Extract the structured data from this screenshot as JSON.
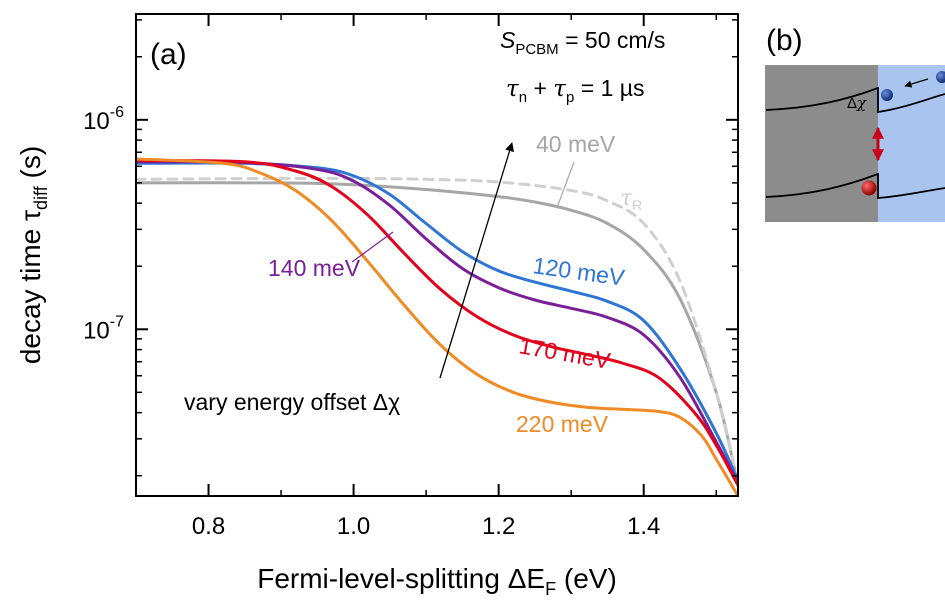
{
  "chart_data": {
    "type": "line",
    "panel_a_label": "(a)",
    "panel_b_label": "(b)",
    "xlabel": {
      "text": "Fermi-level-splitting ΔE",
      "sub": "F",
      "unit": " (eV)"
    },
    "ylabel": {
      "text": "decay time τ",
      "sub": "diff",
      "unit": " (s)"
    },
    "xlim": [
      0.7,
      1.53
    ],
    "ylim": [
      1.6e-08,
      3.2e-06
    ],
    "yscale": "log",
    "x_ticks": [
      {
        "value": 0.8,
        "label": "0.8"
      },
      {
        "value": 1.0,
        "label": "1.0"
      },
      {
        "value": 1.2,
        "label": "1.2"
      },
      {
        "value": 1.4,
        "label": "1.4"
      }
    ],
    "y_ticks": [
      {
        "value": 1e-06,
        "label_base": "10",
        "label_exp": "-6"
      },
      {
        "value": 1e-07,
        "label_base": "10",
        "label_exp": "-7"
      }
    ],
    "params": {
      "line1": {
        "S": "S",
        "sub": "PCBM",
        "rest": " = 50 cm/s"
      },
      "line2": {
        "t1": "τ",
        "s1": "n",
        "plus": " + ",
        "t2": "τ",
        "s2": "p",
        "rest": " = 1 µs"
      }
    },
    "arrow_label": "vary energy offset Δχ",
    "series": [
      {
        "name": "40 meV",
        "color": "#a6a6a6",
        "dashed": false,
        "x": [
          0.7,
          0.9,
          1.0,
          1.1,
          1.2,
          1.25,
          1.3,
          1.35,
          1.4,
          1.45,
          1.5,
          1.53
        ],
        "y": [
          5e-07,
          5e-07,
          4.9e-07,
          4.65e-07,
          4.3e-07,
          4.05e-07,
          3.7e-07,
          3.2e-07,
          2.4e-07,
          1.4e-07,
          5e-08,
          1.8e-08
        ]
      },
      {
        "name": "τR",
        "color": "#cfcfcf",
        "dashed": true,
        "x": [
          0.7,
          0.9,
          1.0,
          1.1,
          1.2,
          1.3,
          1.35,
          1.4,
          1.45,
          1.5,
          1.53
        ],
        "y": [
          5.2e-07,
          5.25e-07,
          5.25e-07,
          5.2e-07,
          5.05e-07,
          4.6e-07,
          4.1e-07,
          3.2e-07,
          1.7e-07,
          5e-08,
          1.8e-08
        ]
      },
      {
        "name": "120 meV",
        "color": "#2e75d6",
        "dashed": false,
        "x": [
          0.7,
          0.85,
          0.95,
          1.0,
          1.05,
          1.1,
          1.15,
          1.2,
          1.25,
          1.3,
          1.35,
          1.4,
          1.45,
          1.5,
          1.53
        ],
        "y": [
          6.2e-07,
          6.2e-07,
          5.9e-07,
          5.4e-07,
          4.4e-07,
          3.2e-07,
          2.35e-07,
          1.9e-07,
          1.68e-07,
          1.52e-07,
          1.36e-07,
          1.1e-07,
          6.5e-08,
          3.2e-08,
          1.9e-08
        ]
      },
      {
        "name": "140 meV",
        "color": "#7b1f99",
        "dashed": false,
        "x": [
          0.7,
          0.85,
          0.95,
          1.0,
          1.05,
          1.1,
          1.15,
          1.2,
          1.25,
          1.3,
          1.35,
          1.4,
          1.45,
          1.5,
          1.53
        ],
        "y": [
          6.3e-07,
          6.25e-07,
          5.8e-07,
          5.1e-07,
          3.9e-07,
          2.7e-07,
          1.95e-07,
          1.58e-07,
          1.38e-07,
          1.26e-07,
          1.14e-07,
          9.4e-08,
          5.9e-08,
          2.9e-08,
          1.85e-08
        ]
      },
      {
        "name": "170 meV",
        "color": "#e3001b",
        "dashed": false,
        "x": [
          0.7,
          0.85,
          0.92,
          0.97,
          1.02,
          1.07,
          1.12,
          1.17,
          1.22,
          1.27,
          1.32,
          1.37,
          1.42,
          1.47,
          1.5,
          1.53
        ],
        "y": [
          6.4e-07,
          6.3e-07,
          5.7e-07,
          4.8e-07,
          3.5e-07,
          2.3e-07,
          1.55e-07,
          1.15e-07,
          9.4e-08,
          8.3e-08,
          7.6e-08,
          6.9e-08,
          5.9e-08,
          4e-08,
          2.8e-08,
          1.8e-08
        ]
      },
      {
        "name": "220 meV",
        "color": "#f08a24",
        "dashed": false,
        "x": [
          0.7,
          0.82,
          0.87,
          0.92,
          0.97,
          1.02,
          1.07,
          1.12,
          1.17,
          1.22,
          1.27,
          1.32,
          1.37,
          1.42,
          1.45,
          1.48,
          1.5,
          1.53
        ],
        "y": [
          6.5e-07,
          6.2e-07,
          5.6e-07,
          4.6e-07,
          3.3e-07,
          2.1e-07,
          1.3e-07,
          8.4e-08,
          6.1e-08,
          5e-08,
          4.5e-08,
          4.25e-08,
          4.15e-08,
          4.05e-08,
          3.8e-08,
          3.1e-08,
          2.4e-08,
          1.6e-08
        ]
      }
    ]
  }
}
